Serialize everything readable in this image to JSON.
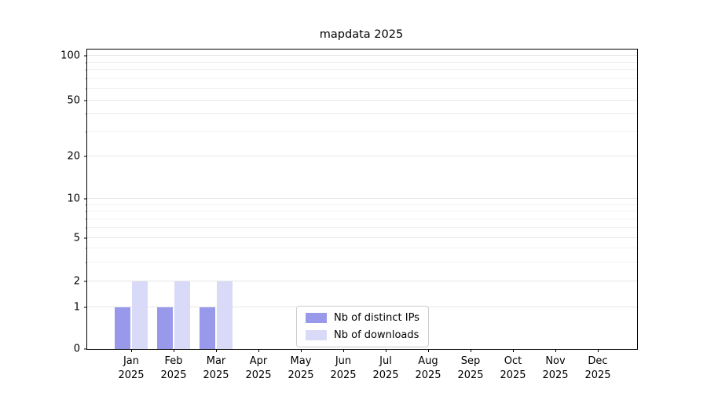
{
  "chart_data": {
    "type": "bar",
    "title": "mapdata 2025",
    "x_year": "2025",
    "months": [
      "Jan",
      "Feb",
      "Mar",
      "Apr",
      "May",
      "Jun",
      "Jul",
      "Aug",
      "Sep",
      "Oct",
      "Nov",
      "Dec"
    ],
    "series": [
      {
        "name": "Nb of distinct IPs",
        "color": "#9999ec",
        "values": [
          1,
          1,
          1,
          0,
          0,
          0,
          0,
          0,
          0,
          0,
          0,
          0
        ]
      },
      {
        "name": "Nb of downloads",
        "color": "#d9d9f8",
        "values": [
          2,
          2,
          2,
          0,
          0,
          0,
          0,
          0,
          0,
          0,
          0,
          0
        ]
      }
    ],
    "y_axis": {
      "scale": "log",
      "ticks": [
        100,
        50,
        20,
        10,
        5,
        2,
        1,
        0
      ],
      "minor_ticks": [
        3,
        4,
        6,
        7,
        8,
        9,
        30,
        40,
        60,
        70,
        80,
        90
      ],
      "ylim": [
        0,
        110
      ]
    },
    "x_axis": {
      "label_lines": 2
    },
    "grid": "horizontal",
    "legend": {
      "position": "lower-center"
    }
  }
}
